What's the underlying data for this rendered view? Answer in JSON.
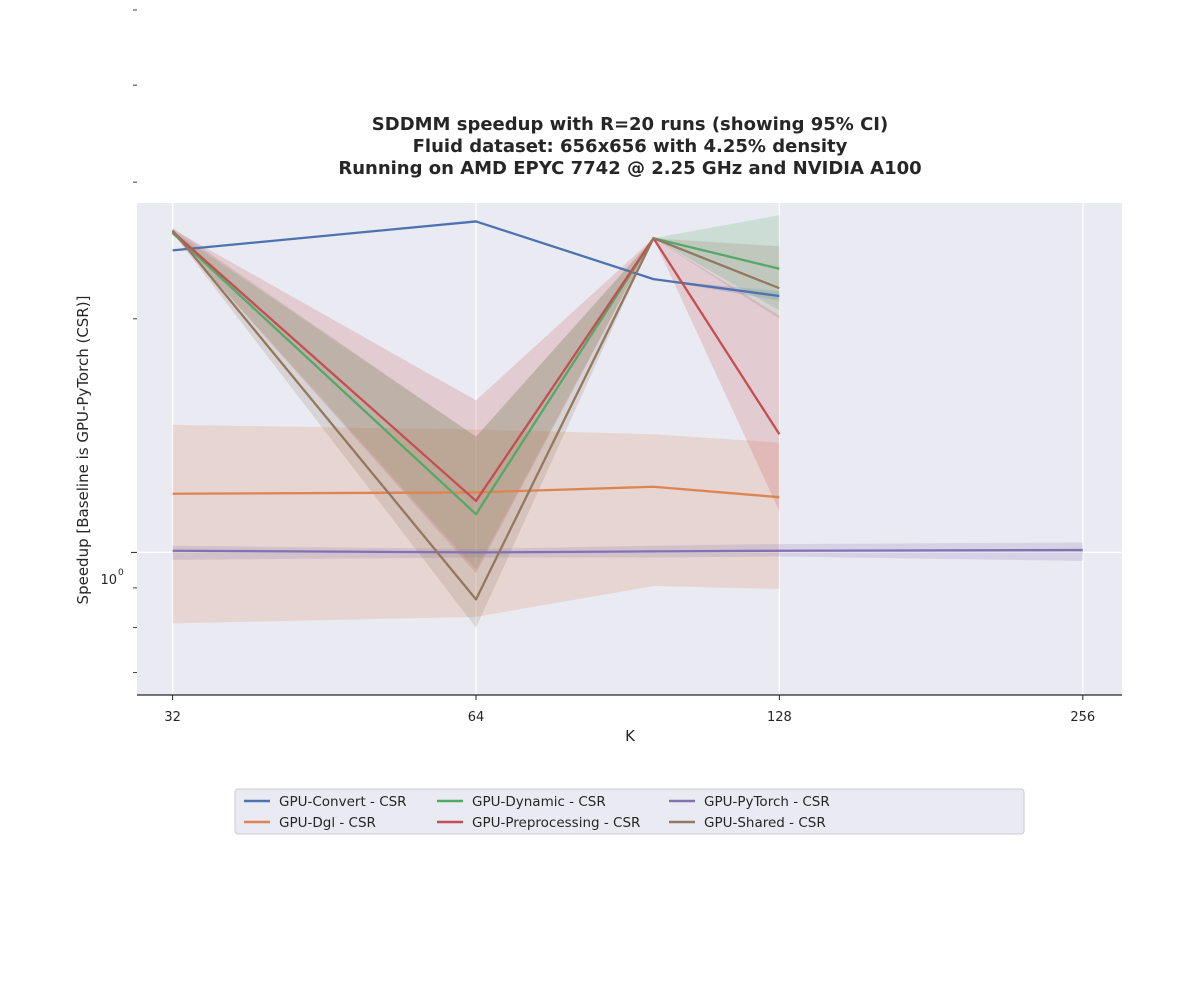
{
  "chart_data": {
    "type": "line",
    "title": [
      "SDDMM speedup with R=20 runs (showing 95% CI)",
      "Fluid dataset: 656x656 with 4.25% density",
      "Running on AMD EPYC 7742 @ 2.25 GHz and NVIDIA A100"
    ],
    "xlabel": "K",
    "ylabel": "Speedup [Baseline is GPU-PyTorch (CSR)]",
    "x_scale": "log2",
    "y_scale": "log10",
    "xlim": [
      29.5,
      280
    ],
    "ylim": [
      0.655,
      2.82
    ],
    "x_ticks": [
      32,
      64,
      128,
      256
    ],
    "x_tick_labels": [
      "32",
      "64",
      "128",
      "256"
    ],
    "y_major_ticks": [
      1
    ],
    "y_major_tick_base": "10",
    "y_major_tick_exp": "0",
    "y_minor_ticks": [
      0.7,
      0.8,
      0.9,
      2,
      3,
      4,
      5,
      6
    ],
    "grid": true,
    "legend_position": "bottom-center",
    "series": [
      {
        "name": "GPU-Convert - CSR",
        "color": "#4c72b0",
        "x": [
          32,
          64,
          96,
          128
        ],
        "y": [
          2.45,
          2.67,
          2.25,
          2.14
        ],
        "ci_low": [
          2.45,
          2.67,
          2.25,
          2.11
        ],
        "ci_high": [
          2.45,
          2.67,
          2.25,
          2.17
        ]
      },
      {
        "name": "GPU-Dgl - CSR",
        "color": "#dd8452",
        "x": [
          32,
          64,
          96,
          128
        ],
        "y": [
          1.19,
          1.195,
          1.215,
          1.178
        ],
        "ci_low": [
          0.81,
          0.826,
          0.905,
          0.897
        ],
        "ci_high": [
          1.46,
          1.44,
          1.42,
          1.385
        ]
      },
      {
        "name": "GPU-Dynamic - CSR",
        "color": "#55a868",
        "x": [
          32,
          64,
          96,
          128
        ],
        "y": [
          2.58,
          1.12,
          2.54,
          2.32
        ],
        "ci_low": [
          2.58,
          0.95,
          2.54,
          2.05
        ],
        "ci_high": [
          2.6,
          1.41,
          2.54,
          2.72
        ]
      },
      {
        "name": "GPU-Preprocessing - CSR",
        "color": "#c44e52",
        "x": [
          32,
          64,
          96,
          128
        ],
        "y": [
          2.59,
          1.165,
          2.54,
          1.42
        ],
        "ci_low": [
          2.58,
          0.94,
          2.54,
          1.13
        ],
        "ci_high": [
          2.61,
          1.57,
          2.54,
          2.02
        ]
      },
      {
        "name": "GPU-PyTorch - CSR",
        "color": "#8172b3",
        "x": [
          32,
          64,
          96,
          128,
          256
        ],
        "y": [
          1.005,
          1.0,
          1.003,
          1.005,
          1.007
        ],
        "ci_low": [
          0.978,
          0.985,
          0.985,
          0.988,
          0.975
        ],
        "ci_high": [
          1.02,
          1.01,
          1.02,
          1.025,
          1.03
        ]
      },
      {
        "name": "GPU-Shared - CSR",
        "color": "#937860",
        "x": [
          32,
          64,
          96,
          128
        ],
        "y": [
          2.6,
          0.87,
          2.54,
          2.19
        ],
        "ci_low": [
          2.58,
          0.8,
          2.54,
          2.0
        ],
        "ci_high": [
          2.62,
          1.41,
          2.54,
          2.48
        ]
      }
    ]
  }
}
